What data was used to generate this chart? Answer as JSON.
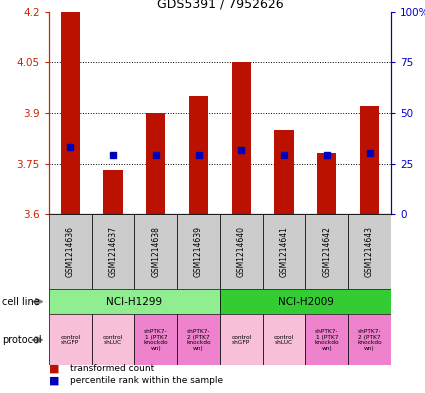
{
  "title": "GDS5391 / 7952626",
  "samples": [
    "GSM1214636",
    "GSM1214637",
    "GSM1214638",
    "GSM1214639",
    "GSM1214640",
    "GSM1214641",
    "GSM1214642",
    "GSM1214643"
  ],
  "red_values": [
    4.2,
    3.73,
    3.9,
    3.95,
    4.05,
    3.85,
    3.78,
    3.92
  ],
  "blue_values": [
    3.8,
    3.775,
    3.775,
    3.775,
    3.79,
    3.775,
    3.775,
    3.78
  ],
  "ymin": 3.6,
  "ymax": 4.2,
  "yticks": [
    3.6,
    3.75,
    3.9,
    4.05,
    4.2
  ],
  "ytick_labels": [
    "3.6",
    "3.75",
    "3.9",
    "4.05",
    "4.2"
  ],
  "right_yticks": [
    0,
    25,
    50,
    75,
    100
  ],
  "right_ytick_labels": [
    "0",
    "25",
    "50",
    "75",
    "100%"
  ],
  "dotted_lines": [
    3.75,
    3.9,
    4.05
  ],
  "cell_line_groups": [
    {
      "label": "NCI-H1299",
      "start": 0,
      "end": 3,
      "color": "#90EE90"
    },
    {
      "label": "NCI-H2009",
      "start": 4,
      "end": 7,
      "color": "#33CC33"
    }
  ],
  "protocols": [
    {
      "label": "control\nshGFP",
      "color": "#F8C0D8"
    },
    {
      "label": "control\nshLUC",
      "color": "#F8C0D8"
    },
    {
      "label": "shPTK7-\n1 (PTK7\nknockdo\nwn)",
      "color": "#EE82CC"
    },
    {
      "label": "shPTK7-\n2 (PTK7\nknockdo\nwn)",
      "color": "#EE82CC"
    },
    {
      "label": "control\nshGFP",
      "color": "#F8C0D8"
    },
    {
      "label": "control\nshLUC",
      "color": "#F8C0D8"
    },
    {
      "label": "shPTK7-\n1 (PTK7\nknockdo\nwn)",
      "color": "#EE82CC"
    },
    {
      "label": "shPTK7-\n2 (PTK7\nknockdo\nwn)",
      "color": "#EE82CC"
    }
  ],
  "bar_color": "#BB1100",
  "dot_color": "#0000BB",
  "label_color_left": "#CC2200",
  "label_color_right": "#0000CC",
  "sample_bg_color": "#CCCCCC",
  "legend_red_label": "transformed count",
  "legend_blue_label": "percentile rank within the sample",
  "cell_line_label": "cell line",
  "protocol_label": "protocol"
}
